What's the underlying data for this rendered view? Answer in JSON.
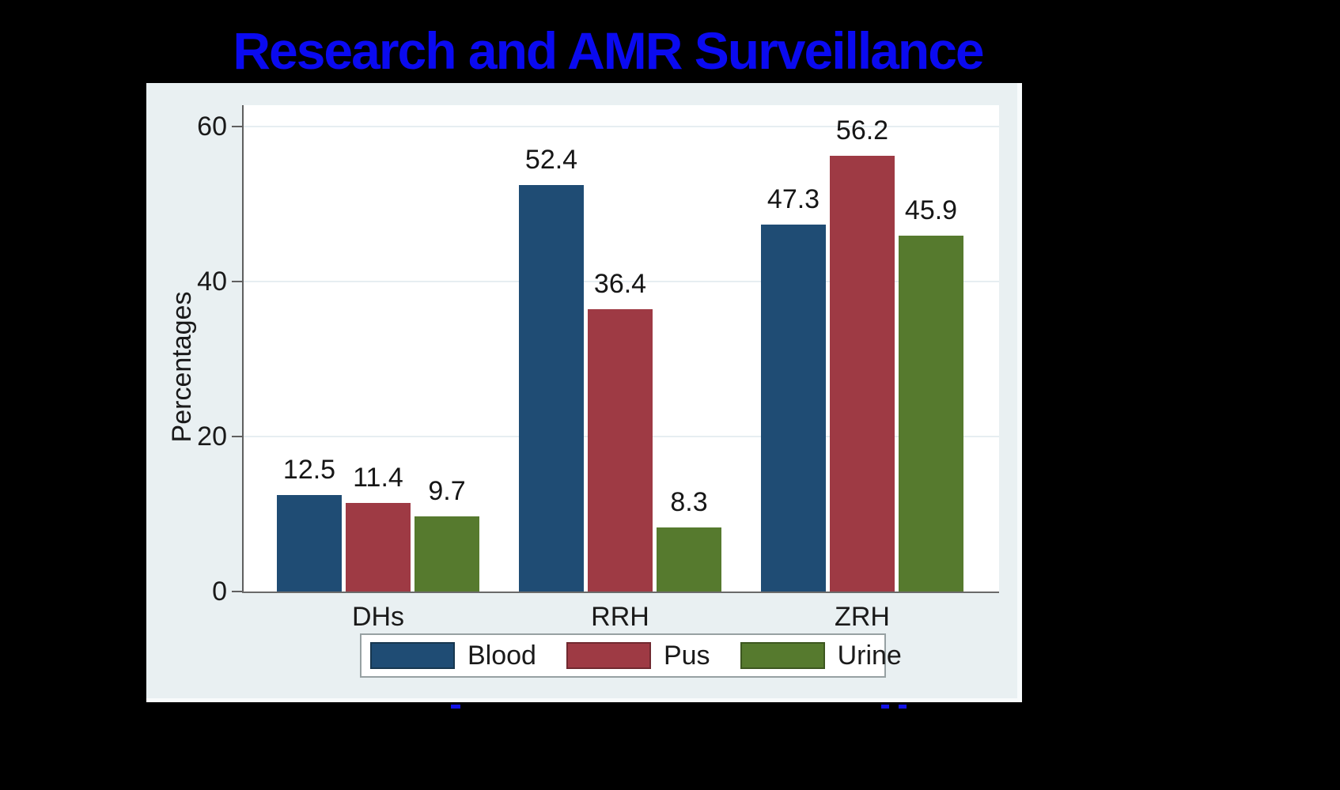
{
  "title": {
    "text": "Research and AMR Surveillance",
    "color": "#0a0af0"
  },
  "panel": {
    "background": "#e9f0f2"
  },
  "chart_data": {
    "type": "bar",
    "title": "Research and AMR Surveillance",
    "categories": [
      "DHs",
      "RRH",
      "ZRH"
    ],
    "series": [
      {
        "name": "Blood",
        "color": "#1f4c74",
        "border_color": "#17374f",
        "values": [
          12.5,
          52.4,
          47.3
        ]
      },
      {
        "name": "Pus",
        "color": "#9e3a44",
        "border_color": "#702930",
        "values": [
          11.4,
          36.4,
          56.2
        ]
      },
      {
        "name": "Urine",
        "color": "#567a2e",
        "border_color": "#3d5720",
        "values": [
          9.7,
          8.3,
          45.9
        ]
      }
    ],
    "bar_labels": true,
    "xlabel": "",
    "ylabel": "Percentages",
    "yticks": [
      0,
      20,
      40,
      60
    ],
    "ylim": [
      0,
      62.7
    ],
    "grid": true,
    "legend_position": "bottom",
    "legend_entries": [
      "Blood",
      "Pus",
      "Urine"
    ]
  }
}
